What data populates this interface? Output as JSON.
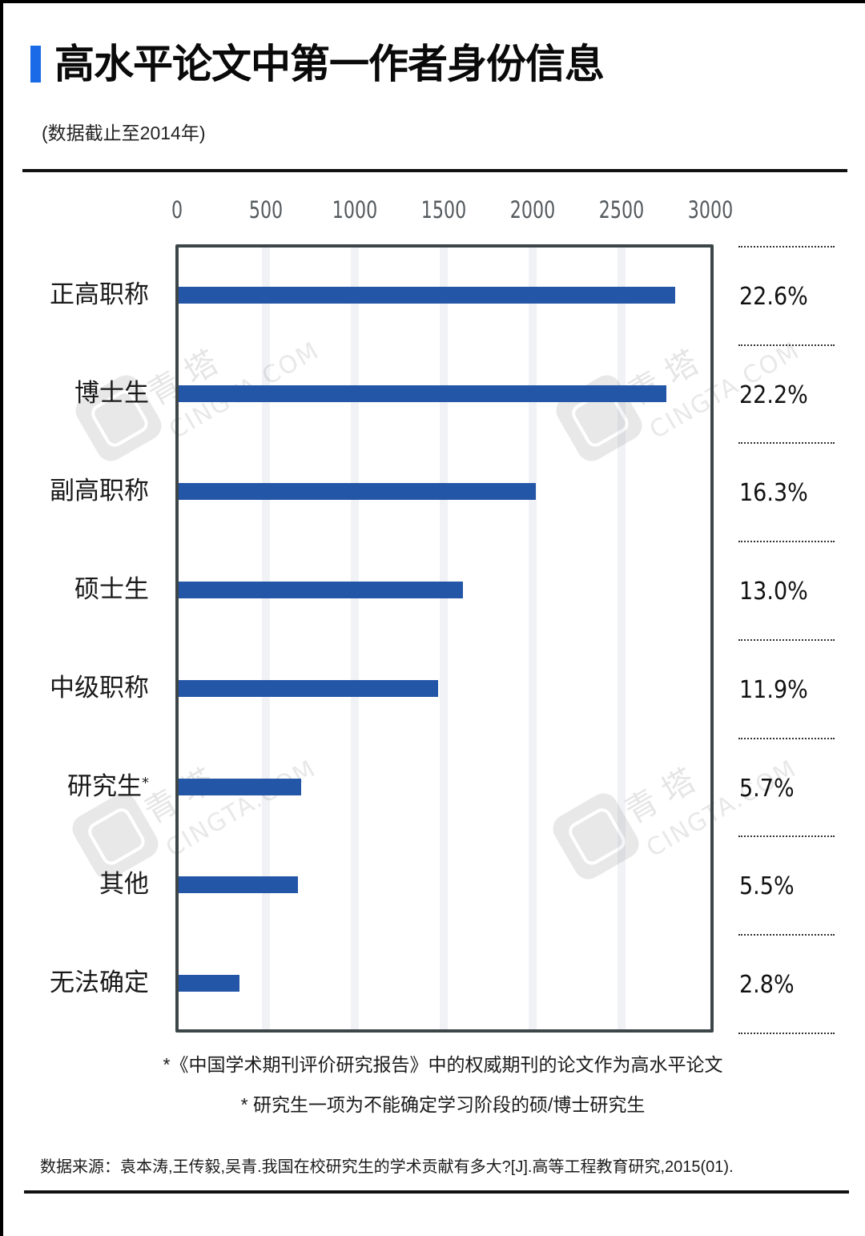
{
  "header": {
    "title": "高水平论文中第一作者身份信息",
    "subtitle": "(数据截止至2014年)",
    "accent_color": "#1a6ae8"
  },
  "axis": {
    "ticks": [
      "0",
      "500",
      "1000",
      "1500",
      "2000",
      "2500",
      "3000"
    ]
  },
  "rows": [
    {
      "label": "正高职称",
      "value": 2800,
      "percent": "22.6%"
    },
    {
      "label": "博士生",
      "value": 2750,
      "percent": "22.2%"
    },
    {
      "label": "副高职称",
      "value": 2020,
      "percent": "16.3%"
    },
    {
      "label": "硕士生",
      "value": 1610,
      "percent": "13.0%"
    },
    {
      "label": "中级职称",
      "value": 1470,
      "percent": "11.9%"
    },
    {
      "label": "研究生",
      "label_mark": "*",
      "value": 700,
      "percent": "5.7%"
    },
    {
      "label": "其他",
      "value": 680,
      "percent": "5.5%"
    },
    {
      "label": "无法确定",
      "value": 350,
      "percent": "2.8%"
    }
  ],
  "watermark": {
    "cn": "青 塔",
    "en": "CINGTA.COM"
  },
  "notes": {
    "note1": "*《中国学术期刊评价研究报告》中的权威期刊的论文作为高水平论文",
    "note2": "* 研究生一项为不能确定学习阶段的硕/博士研究生",
    "source": "数据来源：袁本涛,王传毅,吴青.我国在校研究生的学术贡献有多大?[J].高等工程教育研究,2015(01)."
  },
  "colors": {
    "bar": "#2456a8",
    "frame": "#3c4648",
    "gridline": "#f1f2f5"
  },
  "chart_data": {
    "type": "bar",
    "orientation": "horizontal",
    "title": "高水平论文中第一作者身份信息",
    "subtitle": "(数据截止至2014年)",
    "categories": [
      "正高职称",
      "博士生",
      "副高职称",
      "硕士生",
      "中级职称",
      "研究生*",
      "其他",
      "无法确定"
    ],
    "values": [
      2800,
      2750,
      2020,
      1610,
      1470,
      700,
      680,
      350
    ],
    "data_labels": [
      "22.6%",
      "22.2%",
      "16.3%",
      "13.0%",
      "11.9%",
      "5.7%",
      "5.5%",
      "2.8%"
    ],
    "xlabel": "",
    "ylabel": "",
    "xlim": [
      0,
      3000
    ],
    "x_ticks": [
      0,
      500,
      1000,
      1500,
      2000,
      2500,
      3000
    ],
    "x_axis_position": "top",
    "grid": true,
    "legend": null,
    "annotations": [
      "*《中国学术期刊评价研究报告》中的权威期刊的论文作为高水平论文",
      "* 研究生一项为不能确定学习阶段的硕/博士研究生",
      "数据来源：袁本涛,王传毅,吴青.我国在校研究生的学术贡献有多大?[J].高等工程教育研究,2015(01)."
    ]
  }
}
